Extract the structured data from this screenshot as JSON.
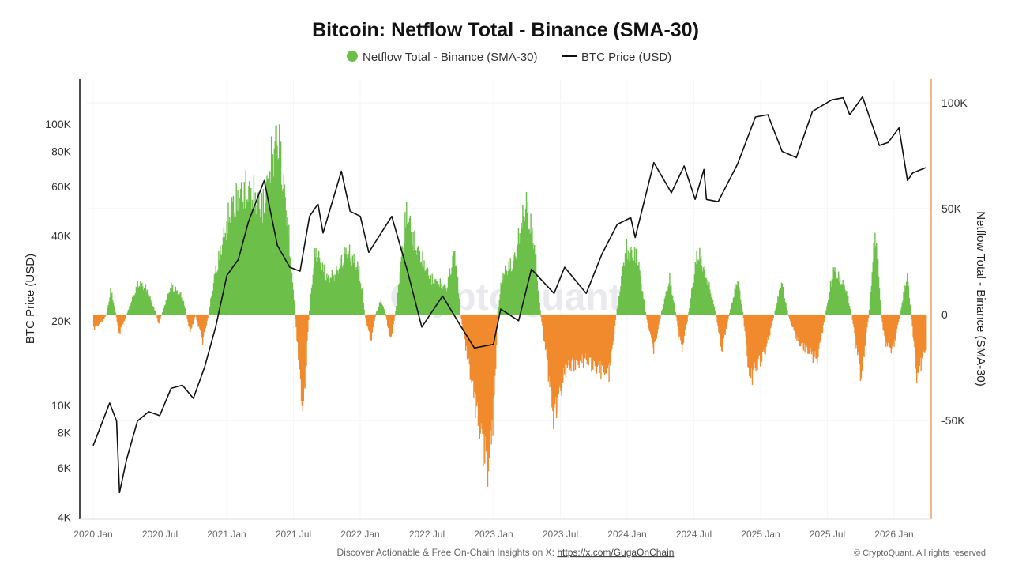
{
  "chart_data": {
    "type": "bar+line",
    "title": "Bitcoin: Netflow Total - Binance (SMA-30)",
    "legend": {
      "position": "top-center",
      "items": [
        {
          "label": "Netflow Total - Binance (SMA-30)",
          "color": "#6cc04a",
          "marker": "circle"
        },
        {
          "label": "BTC Price (USD)",
          "color": "#111111",
          "marker": "line"
        }
      ]
    },
    "ylabel_left": "BTC Price (USD)",
    "ylabel_right": "Netflow Total - Binance (SMA-30)",
    "left_axis": {
      "scale": "log",
      "range": [
        4000,
        120000
      ],
      "ticks": [
        4000,
        6000,
        8000,
        10000,
        20000,
        40000,
        60000,
        80000,
        100000
      ],
      "tick_labels": [
        "4K",
        "6K",
        "8K",
        "10K",
        "20K",
        "40K",
        "60K",
        "80K",
        "100K"
      ]
    },
    "right_axis": {
      "scale": "linear",
      "range": [
        -96000,
        106000
      ],
      "ticks": [
        -50000,
        0,
        50000,
        100000
      ],
      "tick_labels": [
        "-50K",
        "0",
        "50K",
        "100K"
      ]
    },
    "x_ticks": [
      "2020 Jan",
      "2020 Jul",
      "2021 Jan",
      "2021 Jul",
      "2022 Jan",
      "2022 Jul",
      "2023 Jan",
      "2023 Jul",
      "2024 Jan",
      "2024 Jul",
      "2025 Jan",
      "2025 Jul",
      "2026 Jan"
    ],
    "grid": true,
    "colors": {
      "positive": "#6cc04a",
      "negative": "#f08a2c",
      "price": "#111111",
      "right_axis": "#f0a060"
    },
    "watermark": "CryptoQuant",
    "series": [
      {
        "name": "BTC Price (USD)",
        "type": "line",
        "points": [
          [
            "2020-01-01",
            7200
          ],
          [
            "2020-02-15",
            10200
          ],
          [
            "2020-03-05",
            8800
          ],
          [
            "2020-03-13",
            4900
          ],
          [
            "2020-04-01",
            6400
          ],
          [
            "2020-05-01",
            8800
          ],
          [
            "2020-06-01",
            9500
          ],
          [
            "2020-07-01",
            9200
          ],
          [
            "2020-08-01",
            11500
          ],
          [
            "2020-09-01",
            11800
          ],
          [
            "2020-10-01",
            10600
          ],
          [
            "2020-11-01",
            13700
          ],
          [
            "2020-12-01",
            19000
          ],
          [
            "2021-01-01",
            29000
          ],
          [
            "2021-02-01",
            33000
          ],
          [
            "2021-03-01",
            45000
          ],
          [
            "2021-04-13",
            63000
          ],
          [
            "2021-05-19",
            37000
          ],
          [
            "2021-06-22",
            31000
          ],
          [
            "2021-07-20",
            30000
          ],
          [
            "2021-08-15",
            47000
          ],
          [
            "2021-09-07",
            52000
          ],
          [
            "2021-09-21",
            41000
          ],
          [
            "2021-11-10",
            68000
          ],
          [
            "2021-12-04",
            49000
          ],
          [
            "2022-01-01",
            47000
          ],
          [
            "2022-01-24",
            35000
          ],
          [
            "2022-03-28",
            47000
          ],
          [
            "2022-05-10",
            30000
          ],
          [
            "2022-06-18",
            19000
          ],
          [
            "2022-08-14",
            24500
          ],
          [
            "2022-10-01",
            19300
          ],
          [
            "2022-11-09",
            16000
          ],
          [
            "2022-12-31",
            16500
          ],
          [
            "2023-01-20",
            22000
          ],
          [
            "2023-03-10",
            20000
          ],
          [
            "2023-04-14",
            30500
          ],
          [
            "2023-06-15",
            25000
          ],
          [
            "2023-07-14",
            31000
          ],
          [
            "2023-09-11",
            25000
          ],
          [
            "2023-10-24",
            34500
          ],
          [
            "2023-12-05",
            44000
          ],
          [
            "2024-01-11",
            46500
          ],
          [
            "2024-01-23",
            39500
          ],
          [
            "2024-03-14",
            73000
          ],
          [
            "2024-05-01",
            57000
          ],
          [
            "2024-06-05",
            71000
          ],
          [
            "2024-07-05",
            54000
          ],
          [
            "2024-07-29",
            69000
          ],
          [
            "2024-08-05",
            54000
          ],
          [
            "2024-09-06",
            53000
          ],
          [
            "2024-10-29",
            72000
          ],
          [
            "2024-12-17",
            106000
          ],
          [
            "2025-01-20",
            108000
          ],
          [
            "2025-02-28",
            80000
          ],
          [
            "2025-04-08",
            76000
          ],
          [
            "2025-05-22",
            111000
          ],
          [
            "2025-07-14",
            122000
          ],
          [
            "2025-08-14",
            124000
          ],
          [
            "2025-09-01",
            108000
          ],
          [
            "2025-10-06",
            125000
          ],
          [
            "2025-11-21",
            84000
          ],
          [
            "2025-12-15",
            86000
          ],
          [
            "2026-01-14",
            97000
          ],
          [
            "2026-02-06",
            63000
          ],
          [
            "2026-02-20",
            67000
          ],
          [
            "2026-03-28",
            70000
          ]
        ]
      },
      {
        "name": "Netflow Total - Binance (SMA-30)",
        "type": "bar",
        "points": [
          [
            "2020-01-01",
            -8000
          ],
          [
            "2020-01-27",
            -3000
          ],
          [
            "2020-02-05",
            0
          ],
          [
            "2020-02-17",
            14000
          ],
          [
            "2020-03-02",
            0
          ],
          [
            "2020-03-10",
            -11000
          ],
          [
            "2020-03-31",
            0
          ],
          [
            "2020-05-03",
            18000
          ],
          [
            "2020-05-25",
            14000
          ],
          [
            "2020-06-20",
            0
          ],
          [
            "2020-06-27",
            -5000
          ],
          [
            "2020-07-05",
            0
          ],
          [
            "2020-07-30",
            16000
          ],
          [
            "2020-08-31",
            10000
          ],
          [
            "2020-09-10",
            0
          ],
          [
            "2020-09-22",
            -10000
          ],
          [
            "2020-10-05",
            0
          ],
          [
            "2020-10-25",
            -15000
          ],
          [
            "2020-11-10",
            0
          ],
          [
            "2020-11-27",
            22000
          ],
          [
            "2021-01-11",
            60000
          ],
          [
            "2021-02-24",
            70000
          ],
          [
            "2021-04-08",
            60000
          ],
          [
            "2021-05-18",
            102000
          ],
          [
            "2021-06-13",
            55000
          ],
          [
            "2021-07-05",
            0
          ],
          [
            "2021-07-27",
            -56000
          ],
          [
            "2021-08-12",
            0
          ],
          [
            "2021-08-29",
            36000
          ],
          [
            "2021-10-01",
            20000
          ],
          [
            "2021-10-22",
            22000
          ],
          [
            "2021-11-24",
            36000
          ],
          [
            "2021-12-27",
            25000
          ],
          [
            "2022-01-12",
            0
          ],
          [
            "2022-01-28",
            -15000
          ],
          [
            "2022-02-10",
            0
          ],
          [
            "2022-02-25",
            8000
          ],
          [
            "2022-03-10",
            0
          ],
          [
            "2022-03-23",
            -15000
          ],
          [
            "2022-04-05",
            0
          ],
          [
            "2022-05-06",
            57000
          ],
          [
            "2022-05-28",
            40000
          ],
          [
            "2022-07-11",
            20000
          ],
          [
            "2022-08-24",
            15000
          ],
          [
            "2022-09-15",
            36000
          ],
          [
            "2022-10-01",
            0
          ],
          [
            "2022-10-17",
            -20000
          ],
          [
            "2022-11-19",
            -60000
          ],
          [
            "2022-12-15",
            -86000
          ],
          [
            "2023-01-01",
            -50000
          ],
          [
            "2023-01-10",
            0
          ],
          [
            "2023-01-23",
            22000
          ],
          [
            "2023-02-24",
            30000
          ],
          [
            "2023-03-29",
            62000
          ],
          [
            "2023-04-20",
            40000
          ],
          [
            "2023-05-08",
            0
          ],
          [
            "2023-05-22",
            -20000
          ],
          [
            "2023-06-13",
            -58000
          ],
          [
            "2023-07-16",
            -30000
          ],
          [
            "2023-09-08",
            -25000
          ],
          [
            "2023-10-10",
            -30000
          ],
          [
            "2023-11-12",
            -32000
          ],
          [
            "2023-12-01",
            0
          ],
          [
            "2023-12-26",
            36000
          ],
          [
            "2024-01-28",
            32000
          ],
          [
            "2024-02-20",
            0
          ],
          [
            "2024-03-12",
            -20000
          ],
          [
            "2024-04-01",
            0
          ],
          [
            "2024-04-25",
            20000
          ],
          [
            "2024-05-12",
            0
          ],
          [
            "2024-05-28",
            -20000
          ],
          [
            "2024-06-15",
            0
          ],
          [
            "2024-07-11",
            36000
          ],
          [
            "2024-08-12",
            15000
          ],
          [
            "2024-08-30",
            0
          ],
          [
            "2024-09-14",
            -20000
          ],
          [
            "2024-10-05",
            0
          ],
          [
            "2024-10-28",
            20000
          ],
          [
            "2024-11-12",
            0
          ],
          [
            "2024-11-30",
            -36000
          ],
          [
            "2025-01-12",
            -20000
          ],
          [
            "2025-02-05",
            0
          ],
          [
            "2025-02-25",
            18000
          ],
          [
            "2025-03-15",
            0
          ],
          [
            "2025-04-10",
            -15000
          ],
          [
            "2025-06-03",
            -25000
          ],
          [
            "2025-06-25",
            0
          ],
          [
            "2025-07-17",
            25000
          ],
          [
            "2025-08-19",
            15000
          ],
          [
            "2025-09-05",
            0
          ],
          [
            "2025-10-01",
            -35000
          ],
          [
            "2025-10-22",
            0
          ],
          [
            "2025-11-09",
            48000
          ],
          [
            "2025-11-25",
            0
          ],
          [
            "2025-12-05",
            -15000
          ],
          [
            "2025-12-27",
            -20000
          ],
          [
            "2026-01-15",
            0
          ],
          [
            "2026-02-04",
            22000
          ],
          [
            "2026-02-15",
            0
          ],
          [
            "2026-03-02",
            -34000
          ],
          [
            "2026-03-28",
            -18000
          ]
        ]
      }
    ]
  },
  "footer": {
    "text": "Discover Actionable & Free On-Chain Insights on X: ",
    "link": "https://x.com/GugaOnChain",
    "copyright": "© CryptoQuant. All rights reserved"
  }
}
